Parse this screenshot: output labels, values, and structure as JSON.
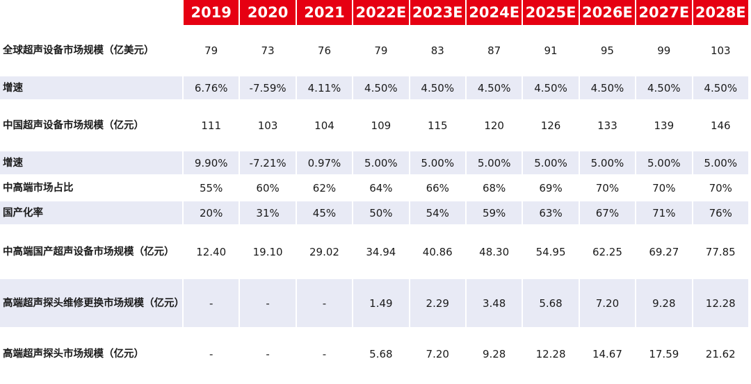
{
  "header": {
    "corner": "",
    "years": [
      "2019",
      "2020",
      "2021",
      "2022E",
      "2023E",
      "2024E",
      "2025E",
      "2026E",
      "2027E",
      "2028E"
    ]
  },
  "rows": [
    {
      "label": "全球超声设备市场规模（亿美元）",
      "values": [
        "79",
        "73",
        "76",
        "79",
        "83",
        "87",
        "91",
        "95",
        "99",
        "103"
      ]
    },
    {
      "label": "增速",
      "values": [
        "6.76%",
        "-7.59%",
        "4.11%",
        "4.50%",
        "4.50%",
        "4.50%",
        "4.50%",
        "4.50%",
        "4.50%",
        "4.50%"
      ]
    },
    {
      "label": "中国超声设备市场规模（亿元）",
      "values": [
        "111",
        "103",
        "104",
        "109",
        "115",
        "120",
        "126",
        "133",
        "139",
        "146"
      ]
    },
    {
      "label": "增速",
      "values": [
        "9.90%",
        "-7.21%",
        "0.97%",
        "5.00%",
        "5.00%",
        "5.00%",
        "5.00%",
        "5.00%",
        "5.00%",
        "5.00%"
      ]
    },
    {
      "label": "中高端市场占比",
      "values": [
        "55%",
        "60%",
        "62%",
        "64%",
        "66%",
        "68%",
        "69%",
        "70%",
        "70%",
        "70%"
      ]
    },
    {
      "label": "国产化率",
      "values": [
        "20%",
        "31%",
        "45%",
        "50%",
        "54%",
        "59%",
        "63%",
        "67%",
        "71%",
        "76%"
      ]
    },
    {
      "label": "中高端国产超声设备市场规模（亿元）",
      "values": [
        "12.40",
        "19.10",
        "29.02",
        "34.94",
        "40.86",
        "48.30",
        "54.95",
        "62.25",
        "69.27",
        "77.85"
      ]
    },
    {
      "label": "高端超声探头维修更换市场规模（亿元）",
      "values": [
        "-",
        "-",
        "-",
        "1.49",
        "2.29",
        "3.48",
        "5.68",
        "7.20",
        "9.28",
        "12.28"
      ]
    },
    {
      "label": "高端超声探头市场规模（亿元）",
      "values": [
        "-",
        "-",
        "-",
        "5.68",
        "7.20",
        "9.28",
        "12.28",
        "14.67",
        "17.59",
        "21.62"
      ]
    }
  ]
}
